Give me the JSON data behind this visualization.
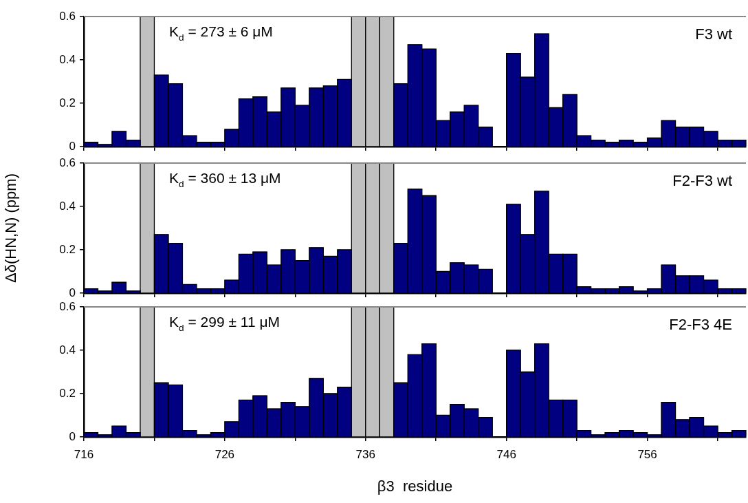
{
  "chart_data": [
    {
      "type": "histogram",
      "bins": [
        716,
        717,
        718,
        719,
        720,
        721,
        722,
        723,
        724,
        725,
        726,
        727,
        728,
        729,
        730,
        731,
        732,
        733,
        734,
        735,
        736,
        737,
        738,
        739,
        740,
        741,
        742,
        743,
        744,
        745,
        746,
        747,
        748,
        749,
        750,
        751,
        752,
        753,
        754,
        755,
        756,
        757,
        758,
        759,
        760,
        761,
        762,
        763
      ],
      "values": [
        0.02,
        0.01,
        0.07,
        0.03,
        null,
        0.33,
        0.29,
        0.05,
        0.02,
        0.02,
        0.08,
        0.22,
        0.23,
        0.16,
        0.27,
        0.19,
        0.27,
        0.28,
        0.31,
        null,
        null,
        null,
        0.29,
        0.47,
        0.45,
        0.12,
        0.16,
        0.19,
        0.09,
        null,
        0.43,
        0.32,
        0.52,
        0.18,
        0.24,
        0.05,
        0.03,
        0.02,
        0.03,
        0.02,
        0.04,
        0.12,
        0.09,
        0.09,
        0.07,
        0.03,
        0.03
      ],
      "color": "#000080",
      "xlim": [
        716,
        763
      ],
      "xticks": [
        716,
        {
          "value": 721,
          "label": null
        },
        726,
        {
          "value": 731,
          "label": null
        },
        736,
        {
          "value": 741,
          "label": null
        },
        746,
        {
          "value": 751,
          "label": null
        },
        756,
        {
          "value": 761,
          "label": null
        }
      ],
      "ylim": [
        0,
        0.6
      ],
      "yticks": [
        0,
        0.2,
        0.4,
        0.6
      ],
      "tick_labels": "y",
      "grid": false,
      "legend": false,
      "bands": [
        {
          "axis": "x",
          "from": 720,
          "to": 721,
          "color": "#c0c0c0"
        },
        {
          "axis": "x",
          "from": 735,
          "to": 736,
          "color": "#c0c0c0"
        },
        {
          "axis": "x",
          "from": 736,
          "to": 737,
          "color": "#c0c0c0"
        },
        {
          "axis": "x",
          "from": 737,
          "to": 738,
          "color": "#c0c0c0"
        }
      ],
      "annotations": [
        "K$_{d}$ = 273 ± 6 μM",
        "F3 wt"
      ]
    },
    {
      "type": "histogram",
      "bins": [
        716,
        717,
        718,
        719,
        720,
        721,
        722,
        723,
        724,
        725,
        726,
        727,
        728,
        729,
        730,
        731,
        732,
        733,
        734,
        735,
        736,
        737,
        738,
        739,
        740,
        741,
        742,
        743,
        744,
        745,
        746,
        747,
        748,
        749,
        750,
        751,
        752,
        753,
        754,
        755,
        756,
        757,
        758,
        759,
        760,
        761,
        762,
        763
      ],
      "values": [
        0.02,
        0.01,
        0.05,
        0.01,
        null,
        0.27,
        0.23,
        0.04,
        0.02,
        0.02,
        0.06,
        0.18,
        0.19,
        0.13,
        0.2,
        0.15,
        0.21,
        0.17,
        0.2,
        null,
        null,
        null,
        0.23,
        0.48,
        0.45,
        0.1,
        0.14,
        0.13,
        0.11,
        null,
        0.41,
        0.27,
        0.47,
        0.18,
        0.18,
        0.03,
        0.02,
        0.02,
        0.03,
        0.01,
        0.02,
        0.13,
        0.08,
        0.08,
        0.06,
        0.02,
        0.02
      ],
      "color": "#000080",
      "xlim": [
        716,
        763
      ],
      "xticks": [
        716,
        {
          "value": 721,
          "label": null
        },
        726,
        {
          "value": 731,
          "label": null
        },
        736,
        {
          "value": 741,
          "label": null
        },
        746,
        {
          "value": 751,
          "label": null
        },
        756,
        {
          "value": 761,
          "label": null
        }
      ],
      "ylim": [
        0,
        0.6
      ],
      "yticks": [
        0,
        0.2,
        0.4,
        0.6
      ],
      "tick_labels": "y",
      "grid": false,
      "legend": false,
      "ylabel": "Δδ(HN,N) (ppm)",
      "bands": [
        {
          "axis": "x",
          "from": 720,
          "to": 721,
          "color": "#c0c0c0"
        },
        {
          "axis": "x",
          "from": 735,
          "to": 736,
          "color": "#c0c0c0"
        },
        {
          "axis": "x",
          "from": 736,
          "to": 737,
          "color": "#c0c0c0"
        },
        {
          "axis": "x",
          "from": 737,
          "to": 738,
          "color": "#c0c0c0"
        }
      ],
      "annotations": [
        "K$_{d}$ = 360 ± 13 μM",
        "F2-F3 wt"
      ]
    },
    {
      "type": "histogram",
      "bins": [
        716,
        717,
        718,
        719,
        720,
        721,
        722,
        723,
        724,
        725,
        726,
        727,
        728,
        729,
        730,
        731,
        732,
        733,
        734,
        735,
        736,
        737,
        738,
        739,
        740,
        741,
        742,
        743,
        744,
        745,
        746,
        747,
        748,
        749,
        750,
        751,
        752,
        753,
        754,
        755,
        756,
        757,
        758,
        759,
        760,
        761,
        762,
        763
      ],
      "values": [
        0.02,
        0.01,
        0.05,
        0.02,
        null,
        0.25,
        0.24,
        0.03,
        0.01,
        0.02,
        0.07,
        0.17,
        0.19,
        0.13,
        0.16,
        0.14,
        0.27,
        0.2,
        0.23,
        null,
        null,
        null,
        0.25,
        0.38,
        0.43,
        0.1,
        0.15,
        0.13,
        0.09,
        null,
        0.4,
        0.3,
        0.43,
        0.17,
        0.17,
        0.03,
        0.01,
        0.02,
        0.03,
        0.02,
        0.01,
        0.16,
        0.08,
        0.09,
        0.05,
        0.02,
        0.03
      ],
      "color": "#000080",
      "xlim": [
        716,
        763
      ],
      "xticks": [
        716,
        {
          "value": 721,
          "label": null
        },
        726,
        {
          "value": 731,
          "label": null
        },
        736,
        {
          "value": 741,
          "label": null
        },
        746,
        {
          "value": 751,
          "label": null
        },
        756,
        {
          "value": 761,
          "label": null
        }
      ],
      "ylim": [
        0,
        0.6
      ],
      "yticks": [
        0,
        0.2,
        0.4,
        0.6
      ],
      "grid": false,
      "legend": false,
      "xlabel": "β3  residue",
      "bands": [
        {
          "axis": "x",
          "from": 720,
          "to": 721,
          "color": "#c0c0c0"
        },
        {
          "axis": "x",
          "from": 735,
          "to": 736,
          "color": "#c0c0c0"
        },
        {
          "axis": "x",
          "from": 736,
          "to": 737,
          "color": "#c0c0c0"
        },
        {
          "axis": "x",
          "from": 737,
          "to": 738,
          "color": "#c0c0c0"
        }
      ],
      "annotations": [
        "K$_{d}$ = 299 ± 11 μM",
        "F2-F3 4E"
      ]
    }
  ]
}
